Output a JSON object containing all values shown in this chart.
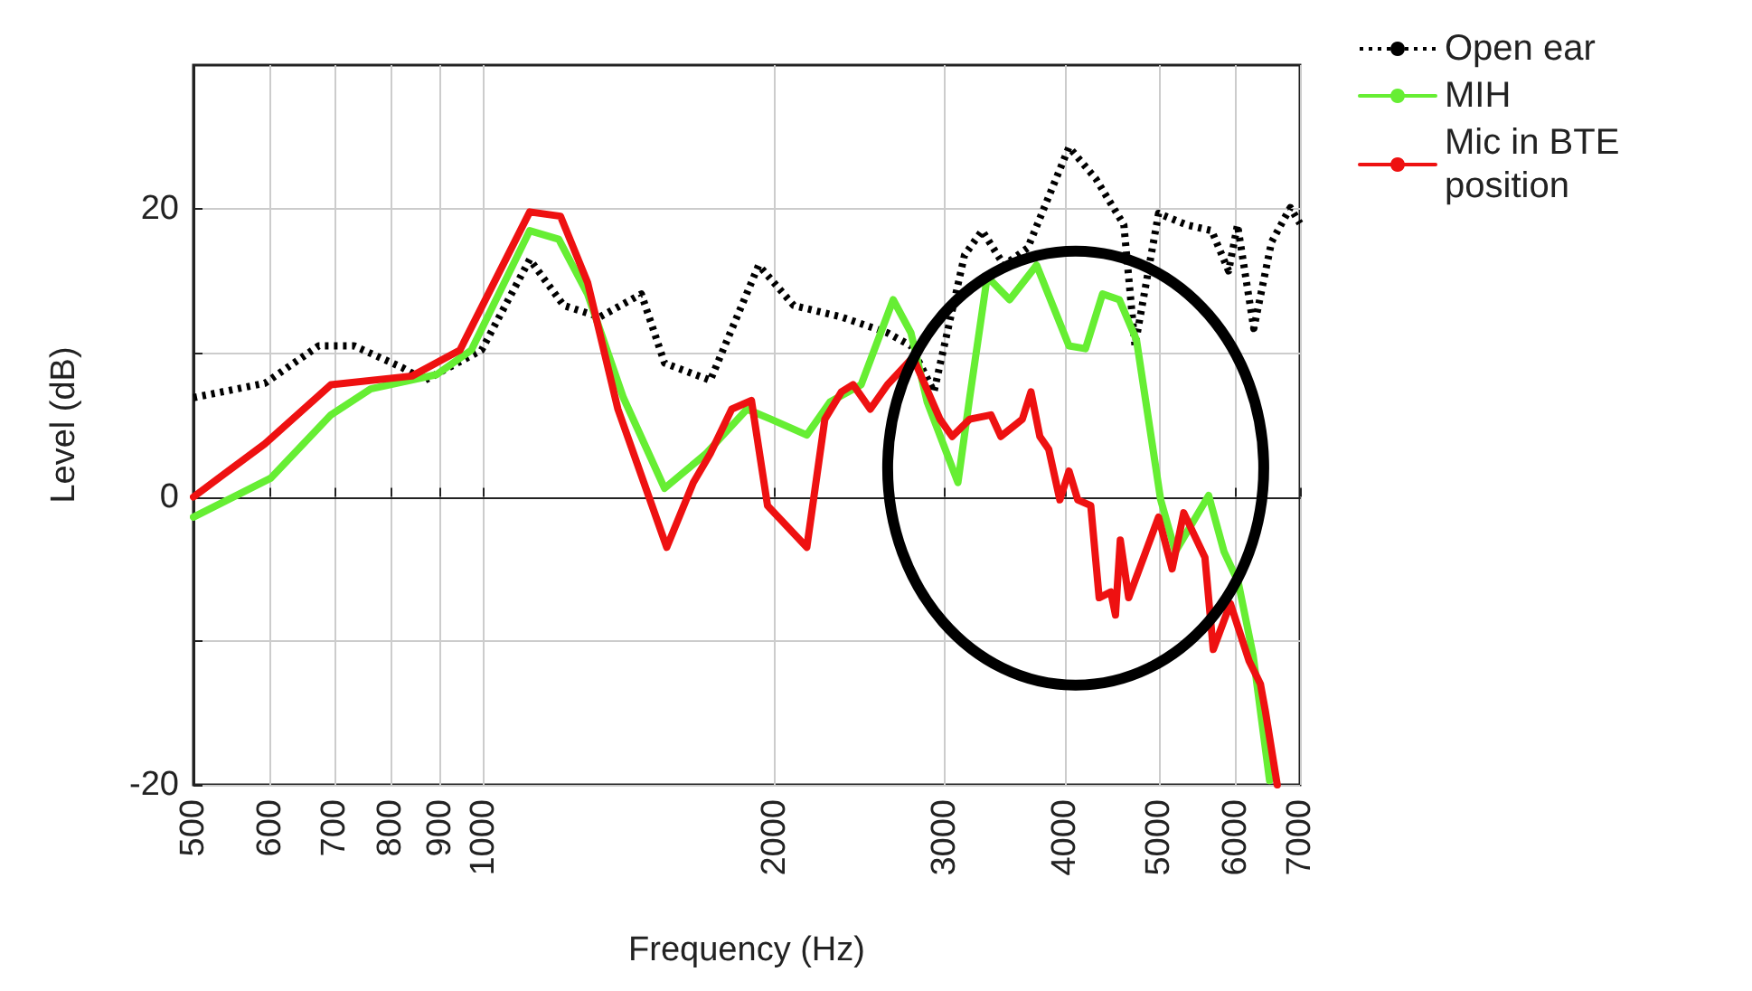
{
  "chart_data": {
    "type": "line",
    "xlabel": "Frequency (Hz)",
    "ylabel": "Level (dB)",
    "log": "x",
    "xlim": [
      500,
      7000
    ],
    "ylim": [
      -20,
      30
    ],
    "xticks": [
      500,
      600,
      700,
      800,
      900,
      1000,
      2000,
      3000,
      4000,
      5000,
      6000,
      7000
    ],
    "yticks": [
      -20,
      {
        "value": -10,
        "label": null
      },
      0,
      {
        "value": 10,
        "label": null
      },
      20
    ],
    "grid": true,
    "legend": "top right",
    "marker": "none",
    "series": [
      {
        "name": "Open ear",
        "color": "#000000",
        "line_style": "dotted",
        "x": [
          500,
          593,
          674,
          733,
          822,
          868,
          994,
          1115,
          1209,
          1318,
          1455,
          1538,
          1715,
          1925,
          2093,
          2345,
          2617,
          2768,
          2924,
          3145,
          3280,
          3456,
          3657,
          4035,
          4302,
          4599,
          4723,
          4996,
          5343,
          5670,
          5904,
          6031,
          6270,
          6540,
          6840,
          7000
        ],
        "values": [
          6.9,
          7.9,
          10.5,
          10.5,
          9.0,
          8.1,
          10.2,
          16.5,
          13.3,
          12.5,
          14.1,
          9.3,
          8.1,
          16.1,
          13.3,
          12.5,
          11.4,
          10.5,
          7.3,
          16.8,
          18.5,
          16.1,
          17.3,
          24.3,
          22.1,
          18.9,
          10.5,
          19.7,
          18.9,
          18.5,
          15.7,
          18.9,
          11.7,
          17.7,
          20.1,
          19
        ]
      },
      {
        "name": "MIH",
        "color": "#66ee33",
        "line_style": "solid",
        "x": [
          500,
          601,
          694,
          763,
          893,
          970,
          1115,
          1195,
          1280,
          1394,
          1538,
          1697,
          1872,
          1982,
          2159,
          2282,
          2458,
          2653,
          2768,
          2877,
          3096,
          3184,
          3320,
          3502,
          3735,
          4035,
          4197,
          4371,
          4550,
          4740,
          5021,
          5200,
          5630,
          5840,
          6040,
          6260,
          6510
        ],
        "values": [
          -1.4,
          1.3,
          5.7,
          7.5,
          8.5,
          10.2,
          18.5,
          17.9,
          14.1,
          6.9,
          0.6,
          3.0,
          6.1,
          5.4,
          4.3,
          6.6,
          7.8,
          13.7,
          11.4,
          6.6,
          1.0,
          6.9,
          15.3,
          13.7,
          16.1,
          10.5,
          10.3,
          14.1,
          13.7,
          10.9,
          -0.2,
          -3.8,
          0.1,
          -3.8,
          -5.9,
          -11.0,
          -19.7
        ]
      },
      {
        "name": "Mic in BTE\nposition",
        "color": "#ee1111",
        "line_style": "solid",
        "x": [
          500,
          593,
          694,
          842,
          944,
          1115,
          1200,
          1280,
          1376,
          1546,
          1647,
          1715,
          1805,
          1892,
          1966,
          2159,
          2254,
          2345,
          2411,
          2512,
          2617,
          2781,
          2966,
          3054,
          3184,
          3350,
          3430,
          3610,
          3685,
          3764,
          3845,
          3948,
          4035,
          4120,
          4250,
          4336,
          4458,
          4508,
          4560,
          4652,
          4996,
          5160,
          5305,
          5580,
          5692,
          5929,
          6200,
          6370,
          6446,
          6630
        ],
        "values": [
          0,
          3.7,
          7.8,
          8.4,
          10.2,
          19.8,
          19.5,
          14.9,
          6.1,
          -3.5,
          1.0,
          3.0,
          6.1,
          6.7,
          -0.6,
          -3.5,
          5.4,
          7.3,
          7.8,
          6.1,
          7.8,
          9.7,
          5.4,
          4.2,
          5.4,
          5.7,
          4.2,
          5.4,
          7.3,
          4.2,
          3.3,
          -0.2,
          1.8,
          -0.2,
          -0.6,
          -7.0,
          -6.6,
          -8.2,
          -3.0,
          -7.0,
          -1.4,
          -5.0,
          -1.1,
          -4.2,
          -10.6,
          -7.4,
          -11.4,
          -13.0,
          -14.9,
          -20
        ]
      }
    ]
  }
}
